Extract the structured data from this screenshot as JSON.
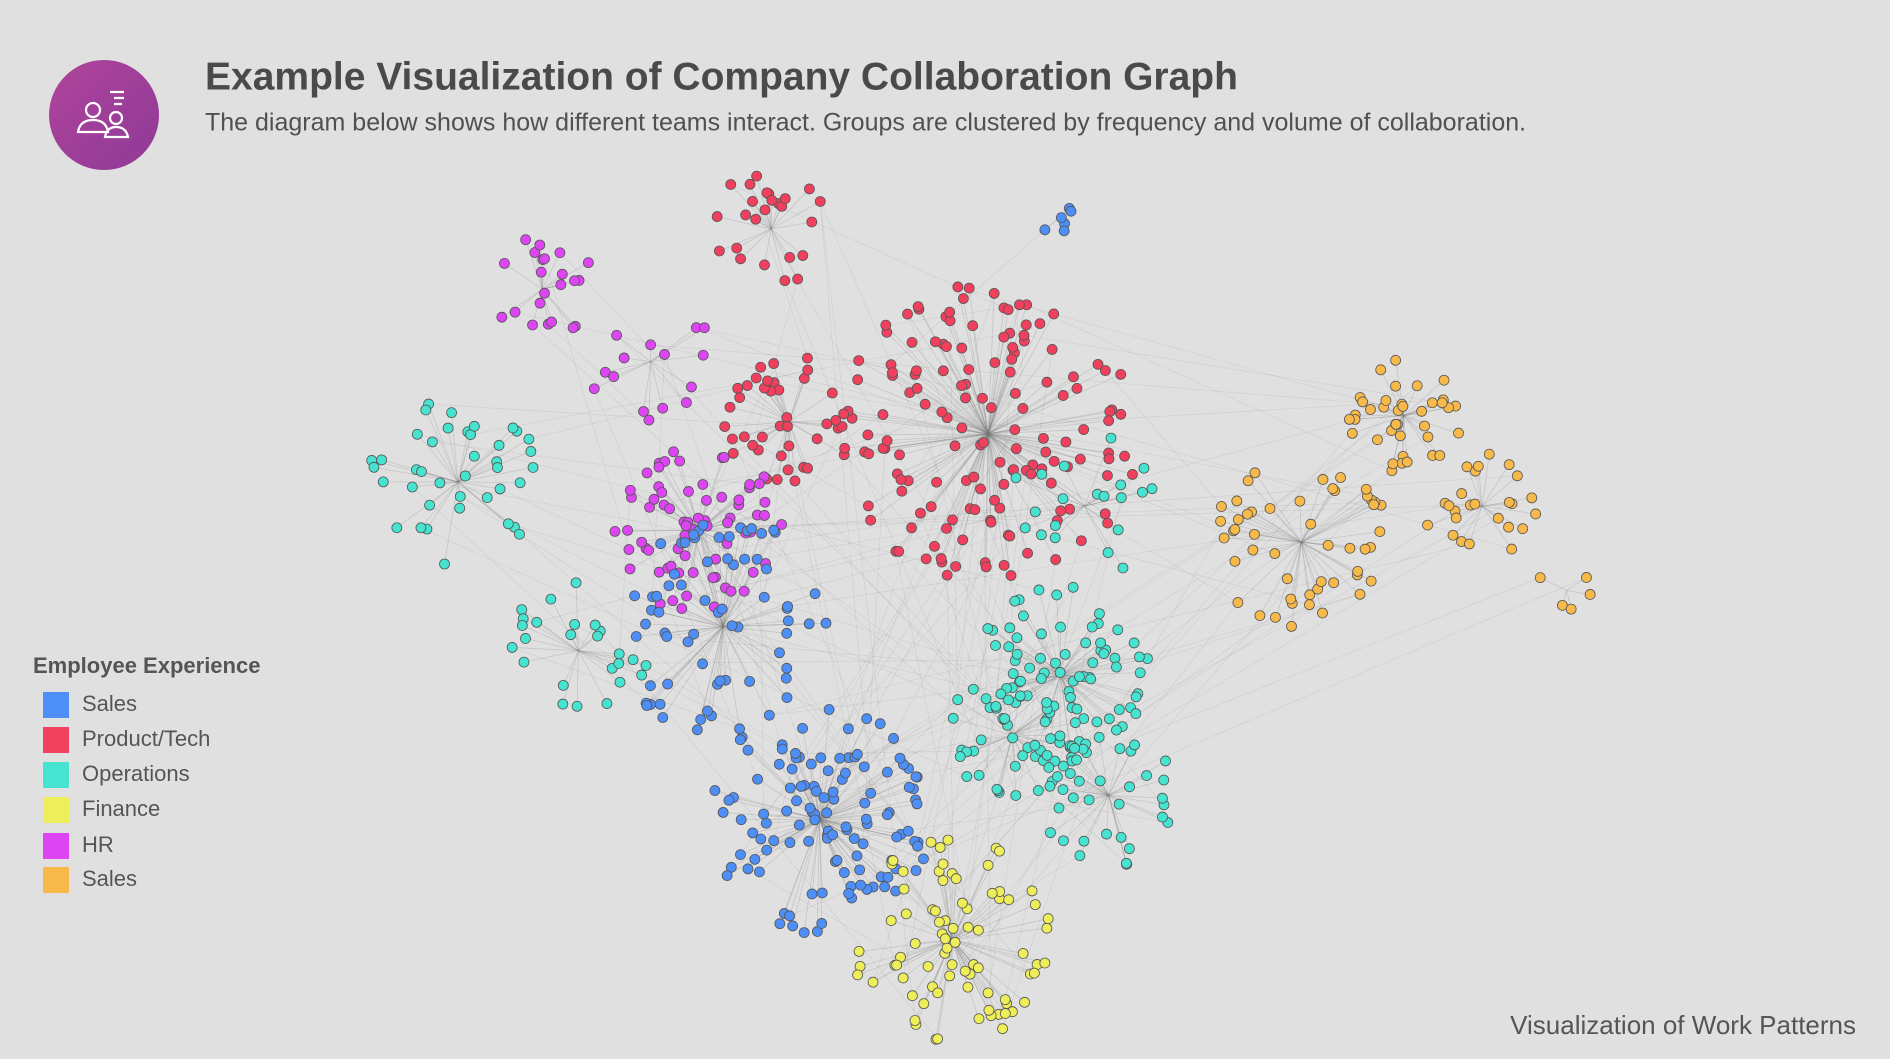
{
  "header": {
    "title": "Example Visualization of Company Collaboration Graph",
    "subtitle": "The diagram below shows how different teams interact. Groups are clustered by frequency and volume of collaboration."
  },
  "legend": {
    "title": "Employee Experience",
    "items": [
      {
        "label": "Sales",
        "color": "#4d8ef7"
      },
      {
        "label": "Product/Tech",
        "color": "#f0405e"
      },
      {
        "label": "Operations",
        "color": "#45e3d0"
      },
      {
        "label": "Finance",
        "color": "#eeee5a"
      },
      {
        "label": "HR",
        "color": "#dd45f2"
      },
      {
        "label": "Sales",
        "color": "#f7b94a"
      }
    ]
  },
  "footer": "Visualization of Work Patterns"
}
